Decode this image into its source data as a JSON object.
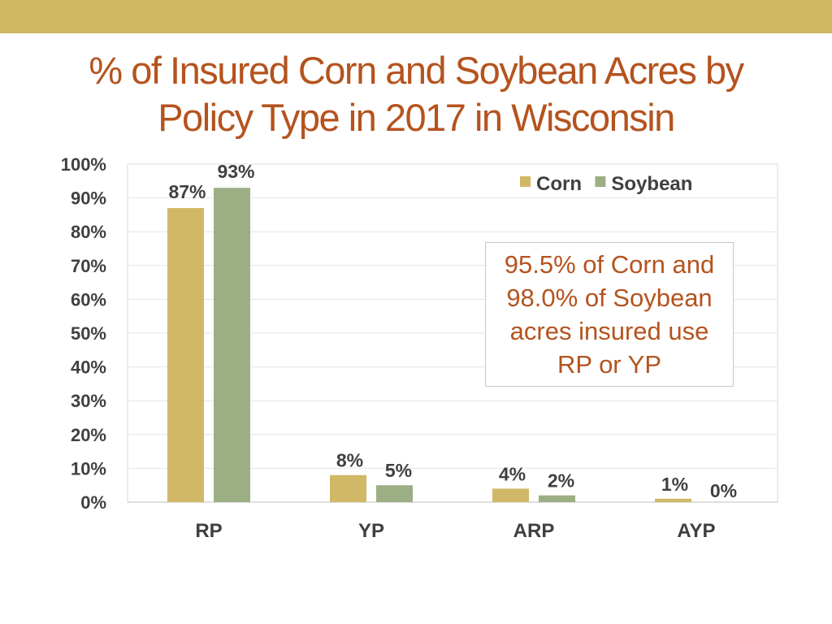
{
  "title_lines": [
    "% of Insured Corn and Soybean Acres  by",
    "Policy Type in 2017 in Wisconsin"
  ],
  "note_lines": [
    "95.5% of Corn and",
    "98.0% of Soybean",
    "acres insured use",
    "RP or YP"
  ],
  "colors": {
    "accent_bar": "#cfb763",
    "title": "#b5531e",
    "corn": "#d0b866",
    "soybean": "#9caf84"
  },
  "chart_data": {
    "type": "bar",
    "categories": [
      "RP",
      "YP",
      "ARP",
      "AYP"
    ],
    "series": [
      {
        "name": "Corn",
        "values": [
          87,
          8,
          4,
          1
        ],
        "labels": [
          "87%",
          "8%",
          "4%",
          "1%"
        ]
      },
      {
        "name": "Soybean",
        "values": [
          93,
          5,
          2,
          0
        ],
        "labels": [
          "93%",
          "5%",
          "2%",
          "0%"
        ]
      }
    ],
    "ylim": [
      0,
      100
    ],
    "yticks": [
      "0%",
      "10%",
      "20%",
      "30%",
      "40%",
      "50%",
      "60%",
      "70%",
      "80%",
      "90%",
      "100%"
    ],
    "grid": true,
    "legend": "top-right"
  }
}
